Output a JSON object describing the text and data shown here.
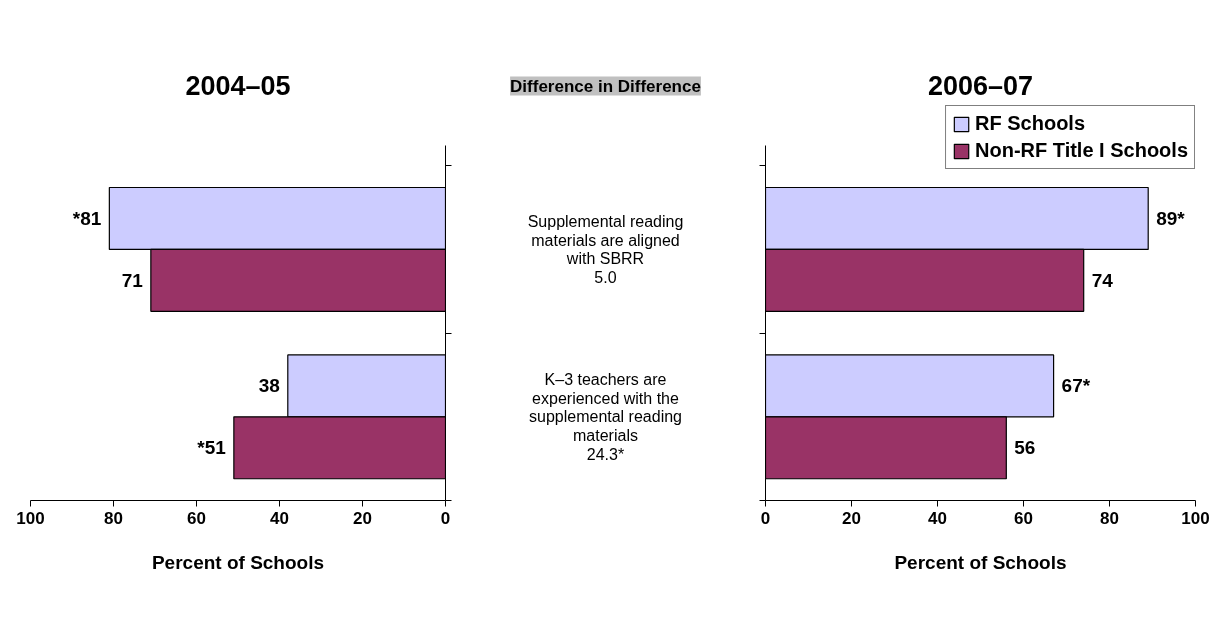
{
  "chart_data": [
    {
      "type": "bar",
      "orientation": "horizontal",
      "title": "2004–05",
      "xlabel": "Percent of Schools",
      "categories": [
        "Supplemental reading materials are aligned with SBRR",
        "K–3 teachers are experienced with the supplemental reading materials"
      ],
      "series": [
        {
          "color": "#ccccff",
          "values": [
            81,
            38
          ],
          "value_labels": [
            "*81",
            "38"
          ]
        },
        {
          "color": "#993366",
          "values": [
            71,
            51
          ],
          "value_labels": [
            "71",
            "*51"
          ]
        }
      ],
      "xlim": [
        100,
        0
      ],
      "xticks": [
        100,
        80,
        60,
        40,
        20,
        0
      ],
      "annotations": [
        "Difference in Difference",
        "5.0",
        "24.3*"
      ],
      "grid": false,
      "legend": false
    },
    {
      "type": "bar",
      "orientation": "horizontal",
      "title": "2006–07",
      "xlabel": "Percent of Schools",
      "categories": [
        null,
        null
      ],
      "series": [
        {
          "name": "RF Schools",
          "color": "#ccccff",
          "values": [
            89,
            67
          ],
          "value_labels": [
            "89*",
            "67*"
          ]
        },
        {
          "name": "Non-RF Title I Schools",
          "color": "#993366",
          "values": [
            74,
            56
          ],
          "value_labels": [
            "74",
            "56"
          ]
        }
      ],
      "xlim": [
        0,
        100
      ],
      "xticks": [
        0,
        20,
        40,
        60,
        80,
        100
      ],
      "tick_labels": "x",
      "grid": false,
      "legend": "top right"
    }
  ]
}
